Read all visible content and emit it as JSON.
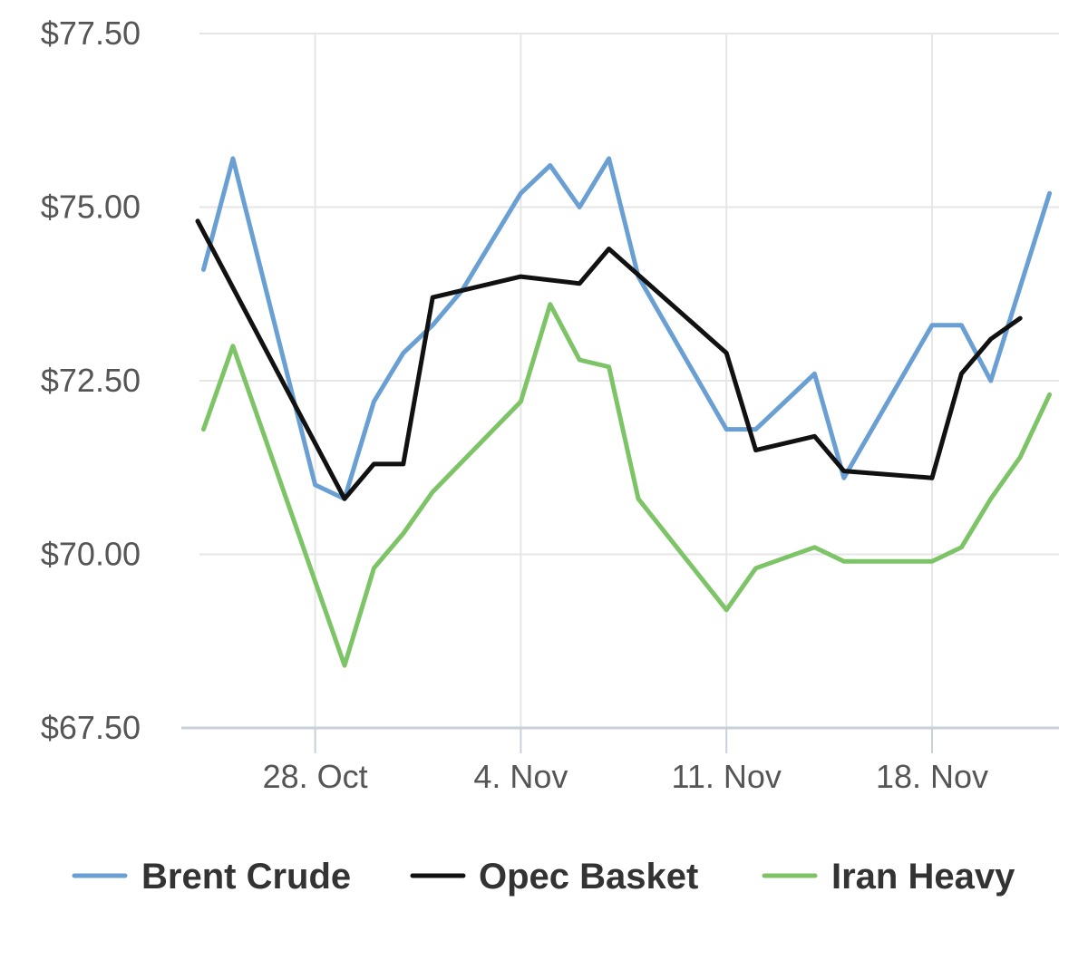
{
  "chart_data": {
    "type": "line",
    "title": "",
    "xlabel": "",
    "ylabel": "",
    "x_ticks": [
      {
        "label": "28. Oct",
        "day": 4
      },
      {
        "label": "4. Nov",
        "day": 11
      },
      {
        "label": "11. Nov",
        "day": 18
      },
      {
        "label": "18. Nov",
        "day": 25
      }
    ],
    "y_ticks": [
      {
        "label": "$67.50",
        "value": 67.5
      },
      {
        "label": "$70.00",
        "value": 70.0
      },
      {
        "label": "$72.50",
        "value": 72.5
      },
      {
        "label": "$75.00",
        "value": 75.0
      },
      {
        "label": "$77.50",
        "value": 77.5
      }
    ],
    "ylim": [
      67.5,
      77.5
    ],
    "xlim": [
      0,
      29.8
    ],
    "grid": true,
    "legend_position": "bottom",
    "series": [
      {
        "name": "Brent Crude",
        "color": "#6a9fd4",
        "points": [
          {
            "day": 0.2,
            "value": 74.1
          },
          {
            "day": 1.2,
            "value": 75.7
          },
          {
            "day": 4.0,
            "value": 71.0
          },
          {
            "day": 5.0,
            "value": 70.8
          },
          {
            "day": 6.0,
            "value": 72.2
          },
          {
            "day": 7.0,
            "value": 72.9
          },
          {
            "day": 8.0,
            "value": 73.3
          },
          {
            "day": 9.0,
            "value": 73.8
          },
          {
            "day": 10.0,
            "value": 74.5
          },
          {
            "day": 11.0,
            "value": 75.2
          },
          {
            "day": 12.0,
            "value": 75.6
          },
          {
            "day": 13.0,
            "value": 75.0
          },
          {
            "day": 14.0,
            "value": 75.7
          },
          {
            "day": 15.0,
            "value": 74.0
          },
          {
            "day": 18.0,
            "value": 71.8
          },
          {
            "day": 19.0,
            "value": 71.8
          },
          {
            "day": 21.0,
            "value": 72.6
          },
          {
            "day": 22.0,
            "value": 71.1
          },
          {
            "day": 25.0,
            "value": 73.3
          },
          {
            "day": 26.0,
            "value": 73.3
          },
          {
            "day": 27.0,
            "value": 72.5
          },
          {
            "day": 29.0,
            "value": 75.2
          }
        ]
      },
      {
        "name": "Opec Basket",
        "color": "#111111",
        "points": [
          {
            "day": 0.0,
            "value": 74.8
          },
          {
            "day": 5.0,
            "value": 70.8
          },
          {
            "day": 6.0,
            "value": 71.3
          },
          {
            "day": 7.0,
            "value": 71.3
          },
          {
            "day": 8.0,
            "value": 73.7
          },
          {
            "day": 11.0,
            "value": 74.0
          },
          {
            "day": 13.0,
            "value": 73.9
          },
          {
            "day": 14.0,
            "value": 74.4
          },
          {
            "day": 18.0,
            "value": 72.9
          },
          {
            "day": 19.0,
            "value": 71.5
          },
          {
            "day": 21.0,
            "value": 71.7
          },
          {
            "day": 22.0,
            "value": 71.2
          },
          {
            "day": 25.0,
            "value": 71.1
          },
          {
            "day": 26.0,
            "value": 72.6
          },
          {
            "day": 27.0,
            "value": 73.1
          },
          {
            "day": 28.0,
            "value": 73.4
          }
        ]
      },
      {
        "name": "Iran Heavy",
        "color": "#7dc467",
        "points": [
          {
            "day": 0.2,
            "value": 71.8
          },
          {
            "day": 1.2,
            "value": 73.0
          },
          {
            "day": 5.0,
            "value": 68.4
          },
          {
            "day": 6.0,
            "value": 69.8
          },
          {
            "day": 7.0,
            "value": 70.3
          },
          {
            "day": 8.0,
            "value": 70.9
          },
          {
            "day": 11.0,
            "value": 72.2
          },
          {
            "day": 12.0,
            "value": 73.6
          },
          {
            "day": 13.0,
            "value": 72.8
          },
          {
            "day": 14.0,
            "value": 72.7
          },
          {
            "day": 15.0,
            "value": 70.8
          },
          {
            "day": 18.0,
            "value": 69.2
          },
          {
            "day": 19.0,
            "value": 69.8
          },
          {
            "day": 21.0,
            "value": 70.1
          },
          {
            "day": 22.0,
            "value": 69.9
          },
          {
            "day": 25.0,
            "value": 69.9
          },
          {
            "day": 26.0,
            "value": 70.1
          },
          {
            "day": 27.0,
            "value": 70.8
          },
          {
            "day": 28.0,
            "value": 71.4
          },
          {
            "day": 29.0,
            "value": 72.3
          }
        ]
      }
    ]
  },
  "legend": {
    "items": [
      {
        "label": "Brent Crude",
        "color": "#6a9fd4"
      },
      {
        "label": "Opec Basket",
        "color": "#111111"
      },
      {
        "label": "Iran Heavy",
        "color": "#7dc467"
      }
    ]
  },
  "colors": {
    "grid": "#e6e6e6",
    "axis": "#c8d0dc",
    "tick_text": "#555555",
    "legend_text": "#333333"
  }
}
